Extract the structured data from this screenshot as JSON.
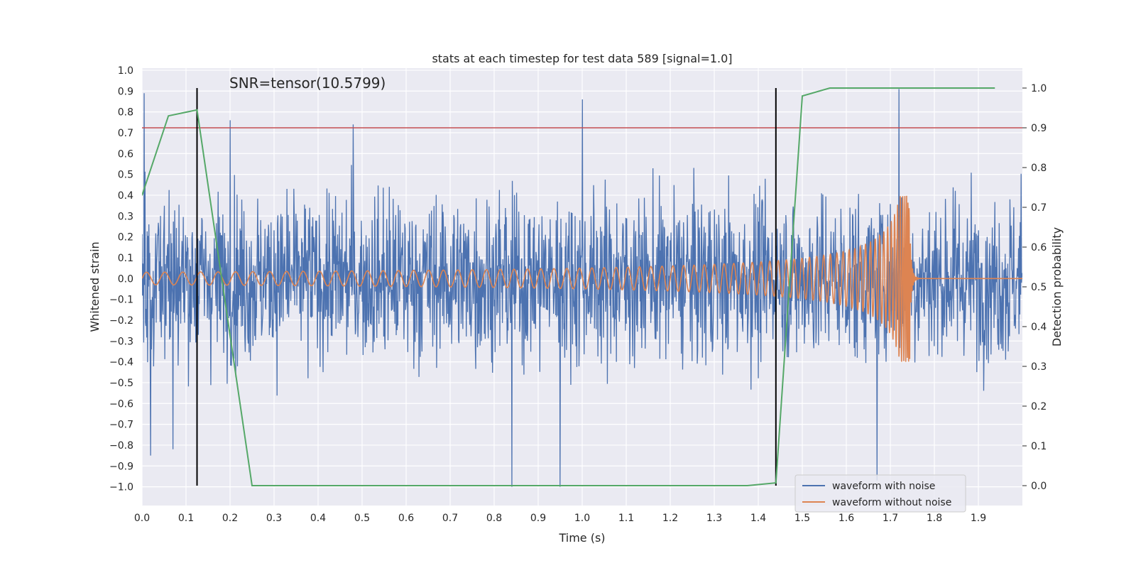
{
  "chart_data": {
    "type": "line",
    "title": "stats at each timestep for test data 589 [signal=1.0]",
    "annotation": "SNR=tensor(10.5799)",
    "xlabel": "Time (s)",
    "ylabel_left": "Whitened strain",
    "ylabel_right": "Detection probability",
    "xlim": [
      0.0,
      2.0
    ],
    "ylim_left": [
      -1.09,
      1.01
    ],
    "ylim_right": [
      -0.05,
      1.05
    ],
    "x_ticks": [
      "0.0",
      "0.1",
      "0.2",
      "0.3",
      "0.4",
      "0.5",
      "0.6",
      "0.7",
      "0.8",
      "0.9",
      "1.0",
      "1.1",
      "1.2",
      "1.3",
      "1.4",
      "1.5",
      "1.6",
      "1.7",
      "1.8",
      "1.9"
    ],
    "y_left_ticks": [
      "1.0",
      "0.9",
      "0.8",
      "0.7",
      "0.6",
      "0.5",
      "0.4",
      "0.3",
      "0.2",
      "0.1",
      "0.0",
      "−0.1",
      "−0.2",
      "−0.3",
      "−0.4",
      "−0.5",
      "−0.6",
      "−0.7",
      "−0.8",
      "−0.9",
      "−1.0"
    ],
    "y_right_ticks": [
      "1.0",
      "0.9",
      "0.8",
      "0.7",
      "0.6",
      "0.5",
      "0.4",
      "0.3",
      "0.2",
      "0.1",
      "0.0"
    ],
    "threshold": 0.9,
    "vertical_lines": [
      0.125,
      1.44
    ],
    "detection_probability": {
      "name": "detection probability",
      "x": [
        0.0,
        0.06,
        0.125,
        0.25,
        1.375,
        1.44,
        1.5,
        1.5625,
        1.9375
      ],
      "y": [
        0.73,
        0.93,
        0.945,
        0.0,
        0.0,
        0.007,
        0.98,
        1.0,
        1.0
      ]
    },
    "series": [
      {
        "name": "waveform with noise",
        "color": "#4c72b0",
        "description": "dense noisy whitened strain trace, roughly within ±0.7 with spikes to ±1.0",
        "spikes": [
          [
            0.005,
            0.89
          ],
          [
            0.02,
            -0.85
          ],
          [
            0.07,
            -0.82
          ],
          [
            0.2,
            0.76
          ],
          [
            0.48,
            0.74
          ],
          [
            0.84,
            -1.0
          ],
          [
            0.95,
            -1.0
          ],
          [
            1.0,
            0.86
          ],
          [
            1.72,
            0.91
          ],
          [
            1.67,
            -0.97
          ]
        ]
      },
      {
        "name": "waveform without noise",
        "color": "#dd8452",
        "description": "chirp signal with growing amplitude and frequency, merging near 1.74 s",
        "amplitude_start": 0.03,
        "amplitude_peak": 0.4,
        "merger_time": 1.745
      }
    ],
    "colors": {
      "probability": "#55a868",
      "threshold": "#c44e52",
      "verticals": "#000000",
      "plot_background": "#eaeaf2"
    }
  }
}
